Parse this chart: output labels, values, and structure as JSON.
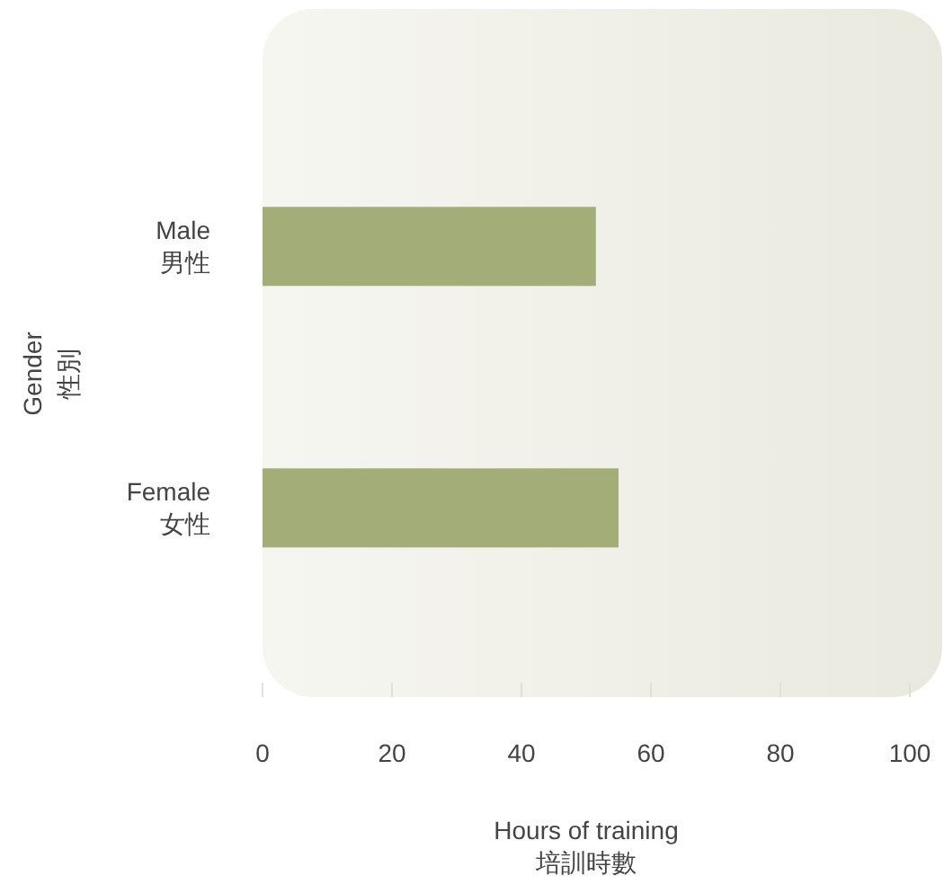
{
  "chart_data": {
    "type": "bar",
    "orientation": "horizontal",
    "categories": [
      "Male\n男性",
      "Female\n女性"
    ],
    "values": [
      51.5,
      55
    ],
    "color": "#a3ad77",
    "xlabel": "Hours of training\n培訓時數",
    "ylabel": "Gender\n性別",
    "xlim": [
      0,
      105
    ],
    "xticks": [
      0,
      20,
      40,
      60,
      80,
      100
    ],
    "grid": false
  }
}
